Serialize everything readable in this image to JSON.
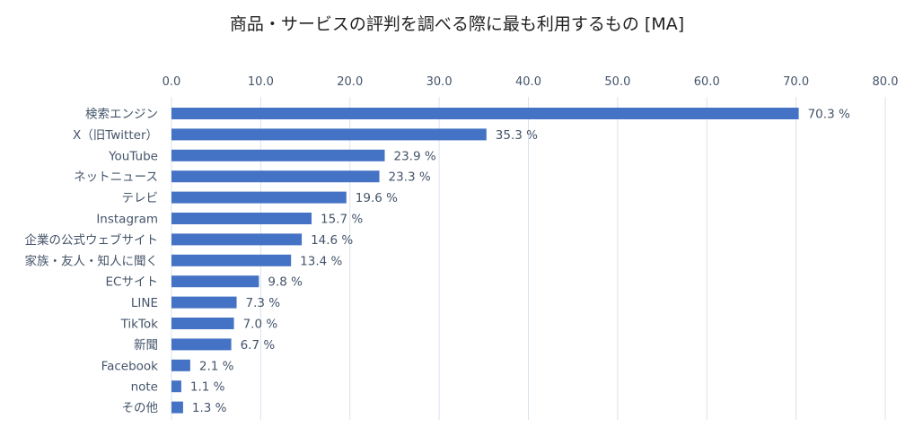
{
  "chart_data": {
    "type": "bar",
    "orientation": "horizontal",
    "title": "商品・サービスの評判を調べる際に最も利用するもの [MA]",
    "categories": [
      "検索エンジン",
      "X（旧Twitter）",
      "YouTube",
      "ネットニュース",
      "テレビ",
      "Instagram",
      "企業の公式ウェブサイト",
      "家族・友人・知人に聞く",
      "ECサイト",
      "LINE",
      "TikTok",
      "新聞",
      "Facebook",
      "note",
      "その他"
    ],
    "values": [
      70.3,
      35.3,
      23.9,
      23.3,
      19.6,
      15.7,
      14.6,
      13.4,
      9.8,
      7.3,
      7.0,
      6.7,
      2.1,
      1.1,
      1.3
    ],
    "value_labels": [
      "70.3 %",
      "35.3 %",
      "23.9 %",
      "23.3 %",
      "19.6 %",
      "15.7 %",
      "14.6 %",
      "13.4 %",
      "9.8 %",
      "7.3 %",
      "7.0 %",
      "6.7 %",
      "2.1 %",
      "1.1 %",
      "1.3 %"
    ],
    "xlim": [
      0,
      80
    ],
    "xticks": [
      "0.0",
      "10.0",
      "20.0",
      "30.0",
      "40.0",
      "50.0",
      "60.0",
      "70.0",
      "80.0"
    ],
    "xaxis_position": "top",
    "grid": true,
    "bar_color": "#4472c4"
  }
}
